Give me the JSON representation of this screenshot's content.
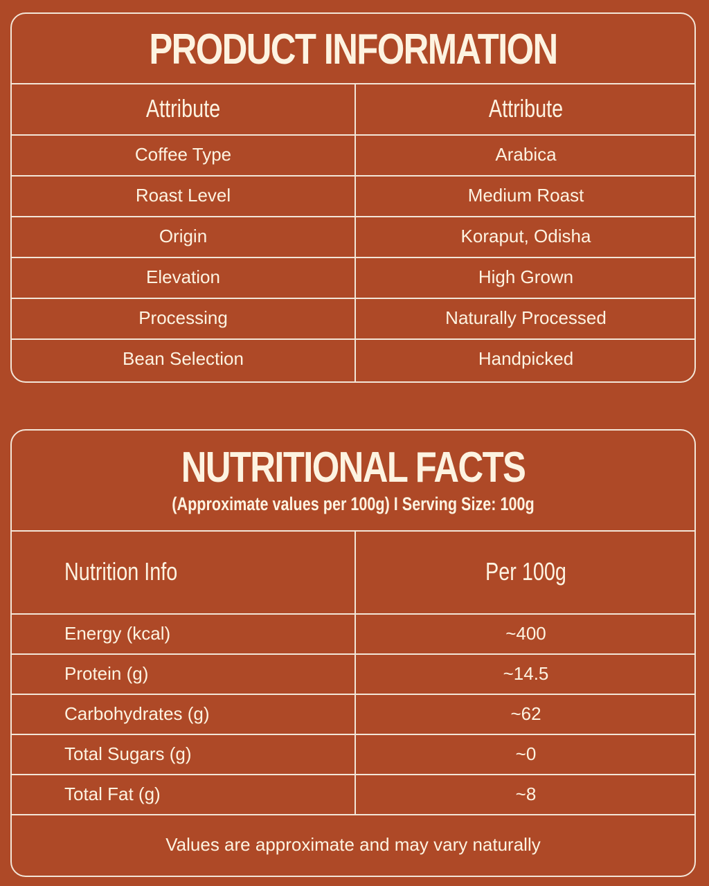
{
  "product_info": {
    "title": "PRODUCT INFORMATION",
    "header": [
      "Attribute",
      "Attribute"
    ],
    "rows": [
      [
        "Coffee Type",
        "Arabica"
      ],
      [
        "Roast Level",
        "Medium Roast"
      ],
      [
        "Origin",
        "Koraput, Odisha"
      ],
      [
        "Elevation",
        "High Grown"
      ],
      [
        "Processing",
        "Naturally Processed"
      ],
      [
        "Bean Selection",
        "Handpicked"
      ]
    ]
  },
  "nutrition": {
    "title": "NUTRITIONAL FACTS",
    "subtitle": "(Approximate values per 100g) I Serving Size: 100g",
    "header": [
      "Nutrition Info",
      "Per 100g"
    ],
    "rows": [
      [
        "Energy (kcal)",
        "~400"
      ],
      [
        "Protein (g)",
        "~14.5"
      ],
      [
        "Carbohydrates (g)",
        "~62"
      ],
      [
        "Total Sugars (g)",
        "~0"
      ],
      [
        "Total Fat (g)",
        "~8"
      ]
    ],
    "footnote": "Values are approximate and may vary naturally"
  }
}
